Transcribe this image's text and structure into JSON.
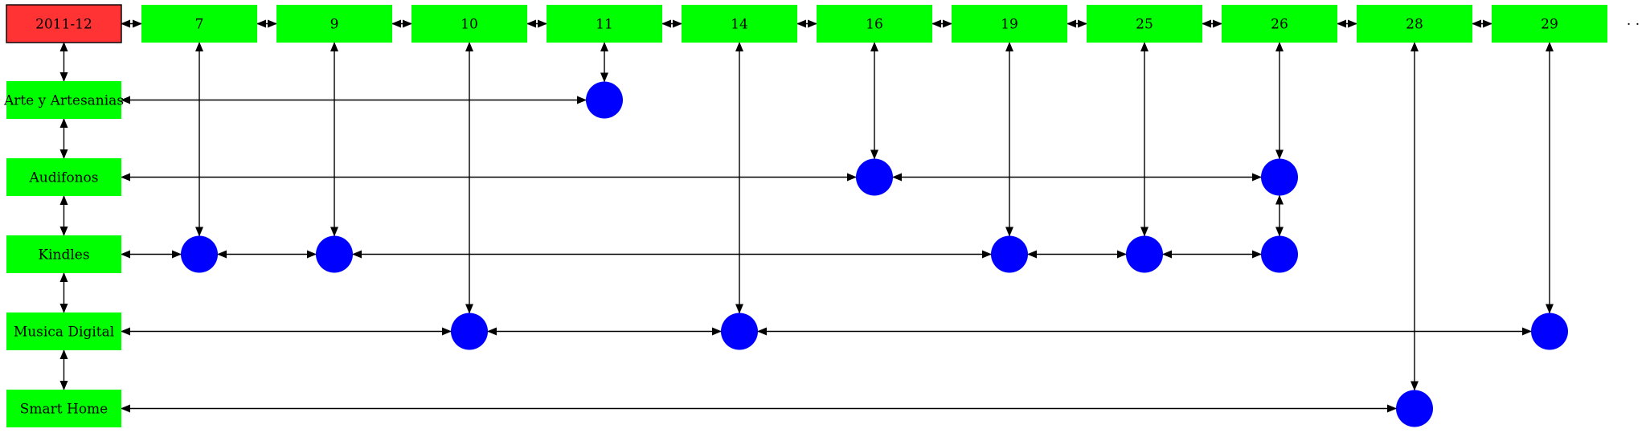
{
  "colors": {
    "header_fill": "#ff3333",
    "node_fill": "#00ff00",
    "dot_fill": "#0000ff",
    "edge": "#000000"
  },
  "root": {
    "label": "2011-12"
  },
  "columns": [
    {
      "label": "7"
    },
    {
      "label": "9"
    },
    {
      "label": "10"
    },
    {
      "label": "11"
    },
    {
      "label": "14"
    },
    {
      "label": "16"
    },
    {
      "label": "19"
    },
    {
      "label": "25"
    },
    {
      "label": "26"
    },
    {
      "label": "28"
    },
    {
      "label": "29"
    }
  ],
  "rows": [
    {
      "label": "Arte y Artesanias"
    },
    {
      "label": "Audifonos"
    },
    {
      "label": "Kindles"
    },
    {
      "label": "Musica Digital"
    },
    {
      "label": "Smart Home"
    }
  ],
  "dots": [
    {
      "column": "11",
      "row": "Arte y Artesanias"
    },
    {
      "column": "16",
      "row": "Audifonos"
    },
    {
      "column": "26",
      "row": "Audifonos"
    },
    {
      "column": "7",
      "row": "Kindles"
    },
    {
      "column": "9",
      "row": "Kindles"
    },
    {
      "column": "19",
      "row": "Kindles"
    },
    {
      "column": "25",
      "row": "Kindles"
    },
    {
      "column": "26",
      "row": "Kindles"
    },
    {
      "column": "10",
      "row": "Musica Digital"
    },
    {
      "column": "14",
      "row": "Musica Digital"
    },
    {
      "column": "29",
      "row": "Musica Digital"
    },
    {
      "column": "28",
      "row": "Smart Home"
    }
  ],
  "trailing_text": ". ."
}
